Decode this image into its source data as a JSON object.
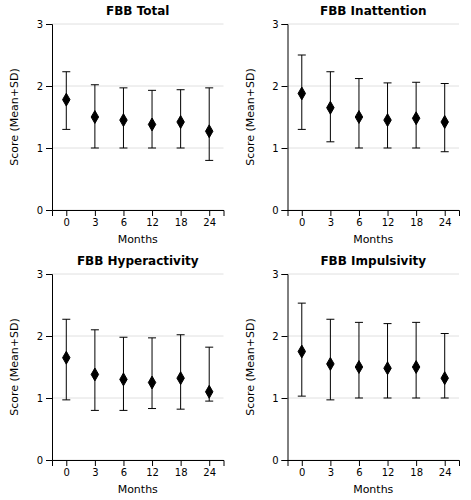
{
  "chart_data": [
    {
      "type": "errorbar",
      "title": "FBB Total",
      "categories": [
        "0",
        "3",
        "6",
        "12",
        "18",
        "24"
      ],
      "values": [
        1.78,
        1.5,
        1.45,
        1.38,
        1.42,
        1.27
      ],
      "errors_upper": [
        0.45,
        0.52,
        0.52,
        0.55,
        0.52,
        0.7
      ],
      "errors_lower": [
        0.48,
        0.5,
        0.45,
        0.38,
        0.42,
        0.47
      ],
      "xlabel": "Months",
      "ylabel": "Score (Mean+SD)",
      "ylim": [
        0,
        3
      ],
      "yticks": [
        0,
        1,
        2,
        3
      ],
      "grid": true,
      "color": "#000000",
      "marker": "diamond"
    },
    {
      "type": "errorbar",
      "title": "FBB Inattention",
      "categories": [
        "0",
        "3",
        "6",
        "12",
        "18",
        "24"
      ],
      "values": [
        1.88,
        1.65,
        1.5,
        1.45,
        1.48,
        1.42
      ],
      "errors_upper": [
        0.62,
        0.58,
        0.62,
        0.6,
        0.58,
        0.62
      ],
      "errors_lower": [
        0.58,
        0.55,
        0.5,
        0.45,
        0.48,
        0.48
      ],
      "xlabel": "Months",
      "ylabel": "Score (Mean+SD)",
      "ylim": [
        0,
        3
      ],
      "yticks": [
        0,
        1,
        2,
        3
      ],
      "grid": true,
      "color": "#000000",
      "marker": "diamond"
    },
    {
      "type": "errorbar",
      "title": "FBB Hyperactivity",
      "categories": [
        "0",
        "3",
        "6",
        "12",
        "18",
        "24"
      ],
      "values": [
        1.65,
        1.38,
        1.3,
        1.25,
        1.32,
        1.1
      ],
      "errors_upper": [
        0.62,
        0.72,
        0.68,
        0.72,
        0.7,
        0.72
      ],
      "errors_lower": [
        0.68,
        0.58,
        0.5,
        0.42,
        0.5,
        0.15
      ],
      "xlabel": "Months",
      "ylabel": "Score (Mean+SD)",
      "ylim": [
        0,
        3
      ],
      "yticks": [
        0,
        1,
        2,
        3
      ],
      "grid": true,
      "color": "#000000",
      "marker": "diamond"
    },
    {
      "type": "errorbar",
      "title": "FBB Impulsivity",
      "categories": [
        "0",
        "3",
        "6",
        "12",
        "18",
        "24"
      ],
      "values": [
        1.75,
        1.55,
        1.5,
        1.48,
        1.5,
        1.32
      ],
      "errors_upper": [
        0.78,
        0.72,
        0.72,
        0.72,
        0.72,
        0.72
      ],
      "errors_lower": [
        0.72,
        0.58,
        0.5,
        0.48,
        0.5,
        0.32
      ],
      "xlabel": "Months",
      "ylabel": "Score (Mean+SD)",
      "ylim": [
        0,
        3
      ],
      "yticks": [
        0,
        1,
        2,
        3
      ],
      "grid": true,
      "color": "#000000",
      "marker": "diamond"
    }
  ]
}
